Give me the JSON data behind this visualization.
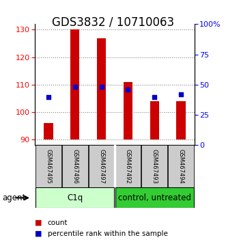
{
  "title": "GDS3832 / 10710063",
  "categories": [
    "GSM467495",
    "GSM467496",
    "GSM467497",
    "GSM467492",
    "GSM467493",
    "GSM467494"
  ],
  "bar_values": [
    96,
    130,
    127,
    111,
    104,
    104
  ],
  "bar_bottom": 90,
  "percentile_values": [
    40,
    48,
    48,
    46,
    40,
    42
  ],
  "ylim_left": [
    88,
    132
  ],
  "ylim_right": [
    0,
    100
  ],
  "yticks_left": [
    90,
    100,
    110,
    120,
    130
  ],
  "yticks_right": [
    0,
    25,
    50,
    75,
    100
  ],
  "yticklabels_right": [
    "0",
    "25",
    "50",
    "75",
    "100%"
  ],
  "bar_color": "#cc0000",
  "dot_color": "#0000cc",
  "group1_label": "C1q",
  "group2_label": "control, untreated",
  "group1_color": "#ccffcc",
  "group2_color": "#33cc33",
  "agent_label": "agent",
  "legend_count_label": "count",
  "legend_pct_label": "percentile rank within the sample",
  "bar_width": 0.35,
  "title_fontsize": 12,
  "tick_fontsize": 8,
  "label_fontsize": 6,
  "group_fontsize": 8.5
}
